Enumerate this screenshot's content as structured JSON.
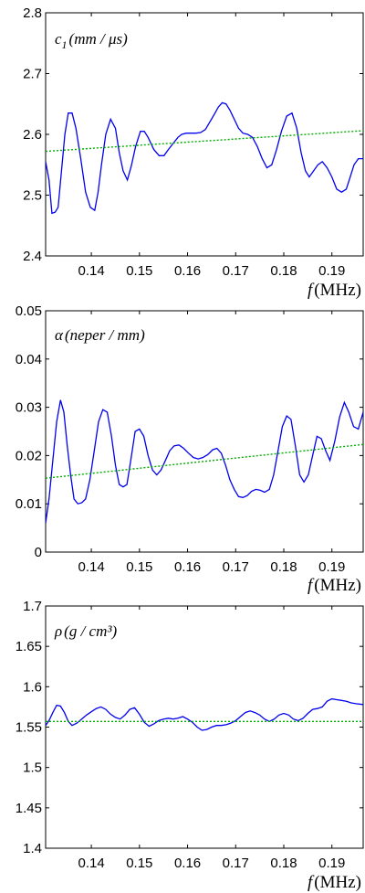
{
  "chart_data": [
    {
      "type": "line",
      "ylabel_math": {
        "symbol": "c",
        "subscript": "1",
        "units": "(mm / μs)"
      },
      "xlabel_math": {
        "symbol": "f",
        "units": "(MHz)"
      },
      "xlim": [
        0.1305,
        0.1965
      ],
      "ylim": [
        2.4,
        2.8
      ],
      "yticks": [
        2.4,
        2.5,
        2.6,
        2.7,
        2.8
      ],
      "ytick_labels": [
        "2.4",
        "2.5",
        "2.6",
        "2.7",
        "2.8"
      ],
      "xticks": [
        0.14,
        0.15,
        0.16,
        0.17,
        0.18,
        0.19
      ],
      "xtick_labels": [
        "0.14",
        "0.15",
        "0.16",
        "0.17",
        "0.18",
        "0.19"
      ],
      "series": [
        {
          "color": "#0000ee",
          "style": "solid",
          "x": [
            0.1305,
            0.1312,
            0.1318,
            0.1325,
            0.1331,
            0.1338,
            0.1345,
            0.1352,
            0.136,
            0.1368,
            0.1378,
            0.1388,
            0.1398,
            0.1407,
            0.1414,
            0.1421,
            0.143,
            0.144,
            0.145,
            0.1458,
            0.1466,
            0.1475,
            0.1483,
            0.1492,
            0.1502,
            0.151,
            0.1518,
            0.153,
            0.1541,
            0.1551,
            0.156,
            0.157,
            0.158,
            0.1588,
            0.1597,
            0.1607,
            0.1617,
            0.1627,
            0.1637,
            0.1646,
            0.1655,
            0.1664,
            0.1672,
            0.168,
            0.1688,
            0.1697,
            0.1706,
            0.1715,
            0.1725,
            0.1735,
            0.1745,
            0.1755,
            0.1765,
            0.1775,
            0.1785,
            0.1795,
            0.1806,
            0.1817,
            0.1827,
            0.1836,
            0.1845,
            0.1853,
            0.1862,
            0.1871,
            0.188,
            0.189,
            0.19,
            0.191,
            0.192,
            0.193,
            0.1938,
            0.1946,
            0.1955,
            0.1965
          ],
          "y": [
            2.555,
            2.525,
            2.47,
            2.472,
            2.48,
            2.54,
            2.6,
            2.635,
            2.635,
            2.61,
            2.56,
            2.505,
            2.48,
            2.475,
            2.505,
            2.55,
            2.6,
            2.625,
            2.61,
            2.57,
            2.54,
            2.525,
            2.548,
            2.58,
            2.605,
            2.605,
            2.595,
            2.575,
            2.565,
            2.565,
            2.575,
            2.585,
            2.595,
            2.6,
            2.602,
            2.602,
            2.602,
            2.603,
            2.608,
            2.62,
            2.632,
            2.645,
            2.652,
            2.65,
            2.64,
            2.625,
            2.61,
            2.602,
            2.6,
            2.595,
            2.58,
            2.56,
            2.545,
            2.55,
            2.575,
            2.605,
            2.63,
            2.635,
            2.61,
            2.57,
            2.54,
            2.53,
            2.54,
            2.55,
            2.555,
            2.545,
            2.53,
            2.51,
            2.505,
            2.51,
            2.53,
            2.55,
            2.56,
            2.56
          ]
        },
        {
          "color": "#00aa00",
          "style": "dotted",
          "x": [
            0.1305,
            0.1965
          ],
          "y": [
            2.572,
            2.606
          ]
        }
      ]
    },
    {
      "type": "line",
      "ylabel_math": {
        "symbol": "α",
        "units": "(neper / mm)"
      },
      "xlabel_math": {
        "symbol": "f",
        "units": "(MHz)"
      },
      "xlim": [
        0.1305,
        0.1965
      ],
      "ylim": [
        0,
        0.05
      ],
      "yticks": [
        0,
        0.01,
        0.02,
        0.03,
        0.04,
        0.05
      ],
      "ytick_labels": [
        "0",
        "0.01",
        "0.02",
        "0.03",
        "0.04",
        "0.05"
      ],
      "xticks": [
        0.14,
        0.15,
        0.16,
        0.17,
        0.18,
        0.19
      ],
      "xtick_labels": [
        "0.14",
        "0.15",
        "0.16",
        "0.17",
        "0.18",
        "0.19"
      ],
      "series": [
        {
          "color": "#0000ee",
          "style": "solid",
          "x": [
            0.1305,
            0.1312,
            0.132,
            0.1328,
            0.1336,
            0.1343,
            0.135,
            0.1357,
            0.1364,
            0.1372,
            0.138,
            0.1388,
            0.1397,
            0.1406,
            0.1415,
            0.1424,
            0.1433,
            0.1442,
            0.145,
            0.1458,
            0.1466,
            0.1474,
            0.1482,
            0.1491,
            0.15,
            0.1509,
            0.1518,
            0.1527,
            0.1536,
            0.1545,
            0.1554,
            0.1563,
            0.1572,
            0.1582,
            0.1592,
            0.1602,
            0.1612,
            0.1622,
            0.1632,
            0.1642,
            0.1652,
            0.1661,
            0.167,
            0.1679,
            0.1688,
            0.1697,
            0.1706,
            0.1715,
            0.1724,
            0.1733,
            0.1742,
            0.1751,
            0.176,
            0.177,
            0.1779,
            0.1788,
            0.1797,
            0.1806,
            0.1815,
            0.1824,
            0.1833,
            0.1842,
            0.1851,
            0.186,
            0.1869,
            0.1878,
            0.1887,
            0.1896,
            0.1906,
            0.1916,
            0.1926,
            0.1935,
            0.1945,
            0.1955,
            0.1965
          ],
          "y": [
            0.006,
            0.011,
            0.019,
            0.027,
            0.0315,
            0.029,
            0.022,
            0.016,
            0.011,
            0.01,
            0.0102,
            0.011,
            0.015,
            0.021,
            0.027,
            0.0295,
            0.029,
            0.024,
            0.018,
            0.014,
            0.0135,
            0.014,
            0.019,
            0.025,
            0.0255,
            0.024,
            0.02,
            0.017,
            0.016,
            0.017,
            0.019,
            0.021,
            0.022,
            0.0222,
            0.0215,
            0.0205,
            0.0196,
            0.0193,
            0.0196,
            0.0202,
            0.0212,
            0.0215,
            0.0205,
            0.018,
            0.015,
            0.013,
            0.0115,
            0.0113,
            0.0117,
            0.0126,
            0.013,
            0.0128,
            0.0124,
            0.013,
            0.016,
            0.021,
            0.026,
            0.0282,
            0.0275,
            0.022,
            0.016,
            0.0145,
            0.016,
            0.02,
            0.024,
            0.0235,
            0.021,
            0.019,
            0.023,
            0.028,
            0.031,
            0.029,
            0.026,
            0.0255,
            0.029
          ]
        },
        {
          "color": "#00aa00",
          "style": "dotted",
          "x": [
            0.1305,
            0.1965
          ],
          "y": [
            0.0153,
            0.0223
          ]
        }
      ]
    },
    {
      "type": "line",
      "ylabel_math": {
        "symbol": "ρ",
        "units": "(g / cm³)"
      },
      "xlabel_math": {
        "symbol": "f",
        "units": "(MHz)"
      },
      "xlim": [
        0.1305,
        0.1965
      ],
      "ylim": [
        1.4,
        1.7
      ],
      "yticks": [
        1.4,
        1.45,
        1.5,
        1.55,
        1.6,
        1.65,
        1.7
      ],
      "ytick_labels": [
        "1.4",
        "1.45",
        "1.5",
        "1.55",
        "1.6",
        "1.65",
        "1.7"
      ],
      "xticks": [
        0.14,
        0.15,
        0.16,
        0.17,
        0.18,
        0.19
      ],
      "xtick_labels": [
        "0.14",
        "0.15",
        "0.16",
        "0.17",
        "0.18",
        "0.19"
      ],
      "series": [
        {
          "color": "#0000ee",
          "style": "solid",
          "x": [
            0.1305,
            0.1312,
            0.132,
            0.1328,
            0.1336,
            0.1344,
            0.1352,
            0.136,
            0.137,
            0.138,
            0.139,
            0.14,
            0.141,
            0.142,
            0.143,
            0.144,
            0.145,
            0.146,
            0.147,
            0.148,
            0.149,
            0.15,
            0.151,
            0.152,
            0.153,
            0.154,
            0.155,
            0.156,
            0.157,
            0.158,
            0.159,
            0.16,
            0.161,
            0.162,
            0.163,
            0.164,
            0.165,
            0.166,
            0.167,
            0.168,
            0.169,
            0.17,
            0.171,
            0.172,
            0.173,
            0.174,
            0.175,
            0.176,
            0.177,
            0.178,
            0.179,
            0.18,
            0.181,
            0.182,
            0.183,
            0.184,
            0.185,
            0.186,
            0.187,
            0.188,
            0.189,
            0.19,
            0.191,
            0.192,
            0.193,
            0.194,
            0.195,
            0.1965
          ],
          "y": [
            1.552,
            1.558,
            1.568,
            1.577,
            1.576,
            1.568,
            1.557,
            1.552,
            1.555,
            1.56,
            1.565,
            1.569,
            1.573,
            1.575,
            1.572,
            1.566,
            1.562,
            1.56,
            1.565,
            1.572,
            1.574,
            1.566,
            1.556,
            1.551,
            1.554,
            1.558,
            1.56,
            1.561,
            1.56,
            1.561,
            1.563,
            1.56,
            1.556,
            1.55,
            1.546,
            1.547,
            1.55,
            1.552,
            1.552,
            1.553,
            1.555,
            1.558,
            1.563,
            1.568,
            1.57,
            1.568,
            1.565,
            1.56,
            1.557,
            1.56,
            1.565,
            1.567,
            1.565,
            1.56,
            1.558,
            1.561,
            1.567,
            1.572,
            1.573,
            1.575,
            1.582,
            1.585,
            1.584,
            1.583,
            1.582,
            1.58,
            1.579,
            1.578
          ]
        },
        {
          "color": "#00aa00",
          "style": "dotted",
          "x": [
            0.1305,
            0.1965
          ],
          "y": [
            1.557,
            1.557
          ]
        }
      ]
    }
  ]
}
